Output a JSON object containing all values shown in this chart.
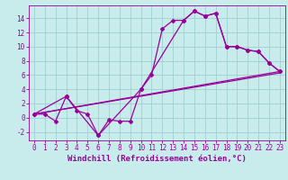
{
  "xlabel": "Windchill (Refroidissement éolien,°C)",
  "background_color": "#c8ecec",
  "grid_color": "#a0d0d0",
  "line_color": "#990099",
  "xlim": [
    -0.5,
    23.5
  ],
  "ylim": [
    -3.2,
    15.8
  ],
  "xticks": [
    0,
    1,
    2,
    3,
    4,
    5,
    6,
    7,
    8,
    9,
    10,
    11,
    12,
    13,
    14,
    15,
    16,
    17,
    18,
    19,
    20,
    21,
    22,
    23
  ],
  "yticks": [
    -2,
    0,
    2,
    4,
    6,
    8,
    10,
    12,
    14
  ],
  "curve1_x": [
    0,
    1,
    2,
    3,
    4,
    5,
    6,
    7,
    8,
    9,
    10,
    11,
    12,
    13,
    14,
    15,
    16,
    17,
    18,
    19,
    20,
    21,
    22,
    23
  ],
  "curve1_y": [
    0.5,
    0.5,
    -0.5,
    3.0,
    1.0,
    0.5,
    -2.5,
    -0.3,
    -0.5,
    -0.5,
    4.0,
    6.0,
    12.5,
    13.7,
    13.7,
    15.0,
    14.3,
    14.7,
    10.0,
    10.0,
    9.5,
    9.3,
    7.7,
    6.5
  ],
  "curve2_x": [
    0,
    3,
    6,
    10,
    14,
    15,
    16,
    17,
    18,
    19,
    20,
    21,
    22,
    23
  ],
  "curve2_y": [
    0.5,
    3.0,
    -2.5,
    4.0,
    13.7,
    15.0,
    14.3,
    14.7,
    10.0,
    10.0,
    9.5,
    9.3,
    7.7,
    6.5
  ],
  "curve3_x": [
    0,
    23
  ],
  "curve3_y": [
    0.5,
    6.5
  ],
  "curve4_x": [
    0,
    23
  ],
  "curve4_y": [
    0.5,
    6.3
  ],
  "marker_style": "D",
  "marker_size": 2.0,
  "line_width": 0.9,
  "xlabel_fontsize": 6.5,
  "tick_fontsize": 5.5
}
